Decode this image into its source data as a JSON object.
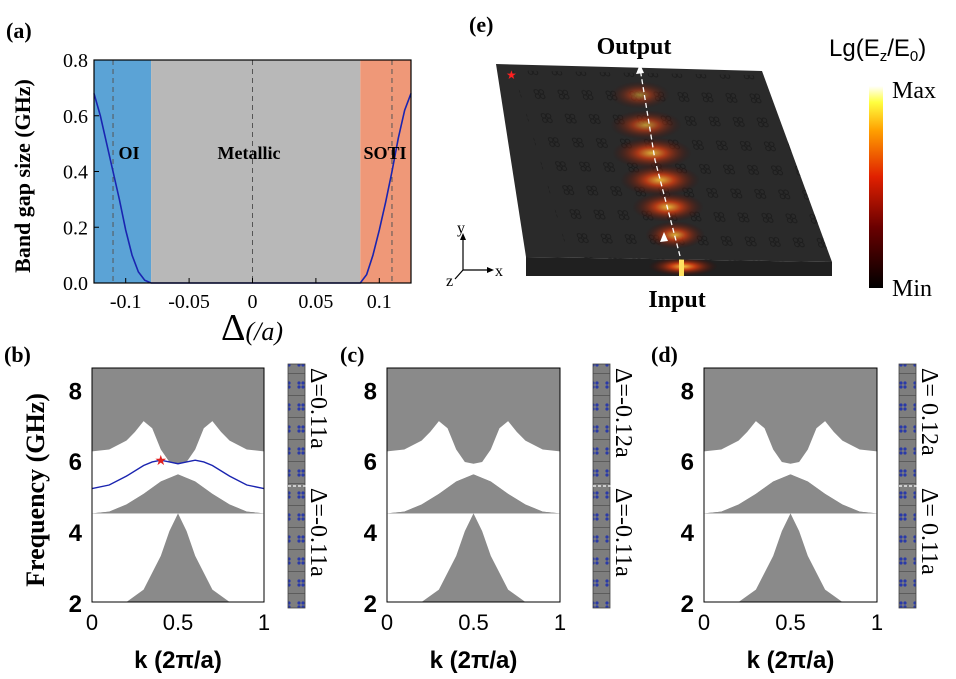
{
  "panels": {
    "a": {
      "label": "(a)",
      "chart_data": {
        "type": "line",
        "xlabel_symbol": "Δ",
        "xlabel_unit": "(/a)",
        "ylabel": "Band gap size (GHz)",
        "xlim": [
          -0.125,
          0.125
        ],
        "ylim": [
          0,
          0.8
        ],
        "xticks": [
          -0.1,
          -0.05,
          0,
          0.05,
          0.1
        ],
        "xtick_labels": [
          "-0.1",
          "-0.05",
          "0",
          "0.05",
          "0.1"
        ],
        "yticks": [
          0,
          0.2,
          0.4,
          0.6,
          0.8
        ],
        "ytick_labels": [
          "0.0",
          "0.2",
          "0.4",
          "0.6",
          "0.8"
        ],
        "regions": [
          {
            "name": "OI",
            "from": -0.125,
            "to": -0.08,
            "color": "#5ba3d6"
          },
          {
            "name": "Metallic",
            "from": -0.08,
            "to": 0.085,
            "color": "#b8b8b8"
          },
          {
            "name": "SOTI",
            "from": 0.085,
            "to": 0.125,
            "color": "#ef9878"
          }
        ],
        "dashed_lines_x": [
          -0.11,
          0,
          0.11
        ],
        "series": [
          {
            "name": "left gap",
            "color": "#1a24b0",
            "x": [
              -0.125,
              -0.12,
              -0.115,
              -0.11,
              -0.105,
              -0.1,
              -0.095,
              -0.09,
              -0.085,
              -0.08,
              -0.075,
              0.08
            ],
            "y": [
              0.68,
              0.6,
              0.5,
              0.4,
              0.3,
              0.19,
              0.1,
              0.04,
              0.01,
              0.0,
              0.0,
              0.0
            ]
          },
          {
            "name": "right gap",
            "color": "#1a24b0",
            "x": [
              0.08,
              0.085,
              0.09,
              0.095,
              0.1,
              0.105,
              0.11,
              0.115,
              0.12,
              0.125
            ],
            "y": [
              0.0,
              0.0,
              0.03,
              0.1,
              0.19,
              0.29,
              0.4,
              0.52,
              0.62,
              0.68
            ]
          }
        ]
      }
    },
    "band_common": {
      "ylabel": "Frequency (GHz)",
      "xlabel": "k (2π/a)",
      "xlim": [
        0,
        1
      ],
      "ylim": [
        2,
        8.6
      ],
      "xticks": [
        0,
        0.5,
        1
      ],
      "xtick_labels": [
        "0",
        "0.5",
        "1"
      ],
      "yticks": [
        2,
        4,
        6,
        8
      ],
      "ytick_labels": [
        "2",
        "4",
        "6",
        "8"
      ],
      "lower_band_top": {
        "k": [
          0,
          0.1,
          0.2,
          0.3,
          0.4,
          0.45,
          0.5,
          0.55,
          0.6,
          0.7,
          0.8,
          0.9,
          1
        ],
        "f": [
          2,
          2,
          2,
          2.35,
          3.3,
          4.0,
          4.5,
          4.0,
          3.3,
          2.35,
          2,
          2,
          2
        ]
      },
      "middle_band_top": {
        "k": [
          0,
          0.1,
          0.2,
          0.3,
          0.4,
          0.5,
          0.6,
          0.7,
          0.8,
          0.9,
          1
        ],
        "f": [
          4.5,
          4.55,
          4.75,
          5.05,
          5.4,
          5.6,
          5.4,
          5.05,
          4.75,
          4.55,
          4.5
        ]
      },
      "upper_band_bottom": {
        "k": [
          0,
          0.1,
          0.2,
          0.25,
          0.3,
          0.35,
          0.4,
          0.45,
          0.5,
          0.55,
          0.6,
          0.65,
          0.7,
          0.75,
          0.8,
          0.9,
          1
        ],
        "f": [
          6.25,
          6.3,
          6.55,
          6.8,
          7.1,
          6.9,
          6.3,
          5.95,
          5.9,
          5.95,
          6.3,
          6.9,
          7.1,
          6.8,
          6.55,
          6.3,
          6.25
        ]
      }
    },
    "b": {
      "label": "(b)",
      "inset_top": "Δ=0.11a",
      "inset_bottom": "Δ=-0.11a",
      "chart_data": {
        "type": "line",
        "series": [
          {
            "name": "edge state",
            "color": "#1a24b0",
            "k": [
              0,
              0.1,
              0.2,
              0.3,
              0.35,
              0.4,
              0.45,
              0.5,
              0.55,
              0.6,
              0.65,
              0.7,
              0.8,
              0.9,
              1
            ],
            "f": [
              5.2,
              5.3,
              5.55,
              5.85,
              5.95,
              6.0,
              5.95,
              5.9,
              5.95,
              6.0,
              5.95,
              5.85,
              5.55,
              5.3,
              5.2
            ]
          }
        ],
        "marker": {
          "k": 0.4,
          "f": 6.0,
          "symbol": "★",
          "color": "#e02020"
        }
      }
    },
    "c": {
      "label": "(c)",
      "inset_top": "Δ=-0.12a",
      "inset_bottom": "Δ=-0.11a",
      "chart_data": {
        "type": "line",
        "series": []
      }
    },
    "d": {
      "label": "(d)",
      "inset_top": "Δ= 0.12a",
      "inset_bottom": "Δ= 0.11a",
      "chart_data": {
        "type": "line",
        "series": []
      }
    },
    "e": {
      "label": "(e)",
      "output_label": "Output",
      "input_label": "Input",
      "colorbar_title": "Lg(E",
      "colorbar_title_sub1": "z",
      "colorbar_title_mid": "/E",
      "colorbar_title_sub2": "0",
      "colorbar_title_end": ")",
      "colorbar_max": "Max",
      "colorbar_min": "Min",
      "axes": {
        "x": "x",
        "y": "y",
        "z": "z"
      },
      "marker": "★"
    }
  },
  "colors": {
    "band_gray": "#8a8a8a",
    "curve_blue": "#1a24b0",
    "star_red": "#e02020"
  }
}
